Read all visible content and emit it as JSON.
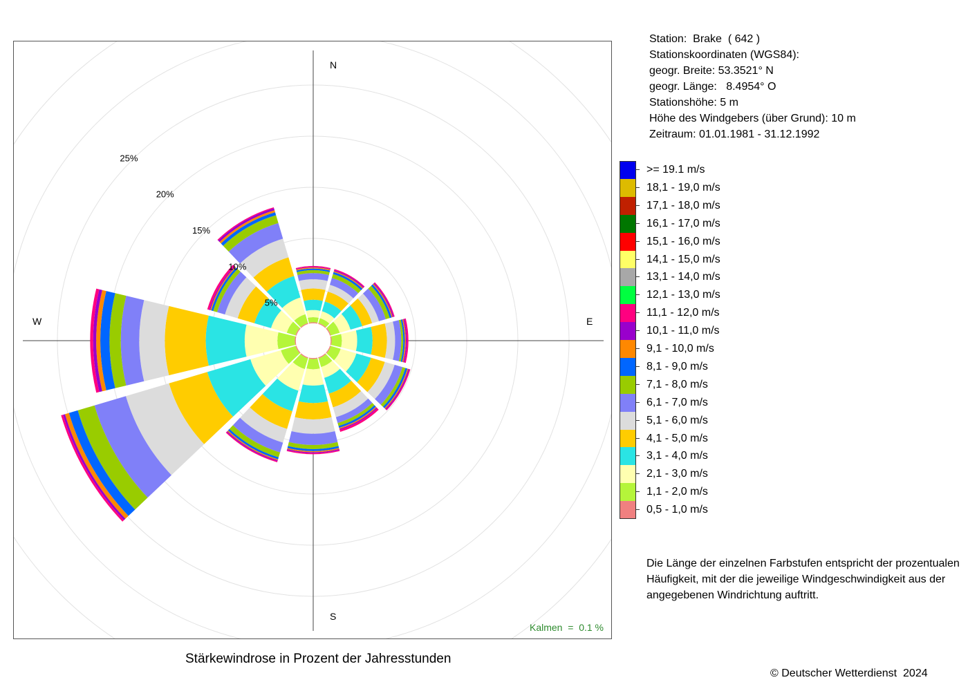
{
  "chart_data": {
    "type": "polar-bar",
    "title": "Stärkewindrose in Prozent der Jahresstunden",
    "compass": {
      "north": "N",
      "east": "E",
      "south": "S",
      "west": "W"
    },
    "ring_labels": [
      "5%",
      "10%",
      "15%",
      "20%",
      "25%"
    ],
    "ring_values": [
      5,
      10,
      15,
      20,
      25
    ],
    "calm_inner_percent": 1.7,
    "calms_label": "Kalmen  =  0.1 %",
    "directions": [
      "N",
      "NNE",
      "ENE",
      "E",
      "ESE",
      "SSE",
      "S",
      "SSW",
      "WSW",
      "W",
      "WNW",
      "NNW"
    ],
    "direction_angles_deg": [
      0,
      30,
      60,
      90,
      120,
      150,
      180,
      210,
      240,
      270,
      300,
      330
    ],
    "classes": [
      {
        "label": "0,5 - 1,0 m/s",
        "color": "#f08080"
      },
      {
        "label": "1,1 - 2,0 m/s",
        "color": "#b5f53a"
      },
      {
        "label": "2,1 - 3,0 m/s",
        "color": "#ffffb0"
      },
      {
        "label": "3,1 - 4,0 m/s",
        "color": "#2ae4e4"
      },
      {
        "label": "4,1 - 5,0 m/s",
        "color": "#ffcc00"
      },
      {
        "label": "5,1 - 6,0 m/s",
        "color": "#dcdcdc"
      },
      {
        "label": "6,1 - 7,0 m/s",
        "color": "#8080f8"
      },
      {
        "label": "7,1 - 8,0 m/s",
        "color": "#99cc00"
      },
      {
        "label": "8,1 - 9,0 m/s",
        "color": "#0066ff"
      },
      {
        "label": "9,1 - 10,0 m/s",
        "color": "#ff8800"
      },
      {
        "label": "10,1 - 11,0 m/s",
        "color": "#9900cc"
      },
      {
        "label": "11,1 - 12,0 m/s",
        "color": "#ff0080"
      },
      {
        "label": "12,1 - 13,0 m/s",
        "color": "#00ff40"
      },
      {
        "label": "13,1 - 14,0 m/s",
        "color": "#a8a8a8"
      },
      {
        "label": "14,1 - 15,0 m/s",
        "color": "#ffff66"
      },
      {
        "label": "15,1 - 16,0 m/s",
        "color": "#ff0000"
      },
      {
        "label": "16,1 - 17,0 m/s",
        "color": "#007700"
      },
      {
        "label": "17,1 - 18,0 m/s",
        "color": "#c02000"
      },
      {
        "label": "18,1 - 19,0 m/s",
        "color": "#ddbb00"
      },
      {
        "label": ">= 19.1 m/s",
        "color": "#0000ee"
      }
    ],
    "cumulative_percent": [
      [
        1.8,
        2.3,
        3.0,
        4.0,
        5.1,
        6.0,
        6.6,
        6.9,
        7.05,
        7.15,
        7.2,
        7.3
      ],
      [
        1.8,
        2.3,
        3.0,
        4.0,
        5.0,
        5.7,
        6.4,
        6.8,
        7.0,
        7.1,
        7.2,
        7.3
      ],
      [
        1.8,
        2.7,
        3.8,
        5.0,
        6.0,
        6.7,
        7.4,
        7.8,
        8.0,
        8.1,
        8.2,
        8.3
      ],
      [
        1.8,
        2.8,
        4.3,
        5.8,
        7.2,
        8.0,
        8.6,
        8.8,
        8.95,
        9.05,
        9.15,
        9.3
      ],
      [
        1.8,
        2.8,
        4.4,
        5.9,
        7.3,
        8.3,
        9.1,
        9.4,
        9.6,
        9.7,
        9.8,
        9.9
      ],
      [
        1.8,
        2.7,
        3.8,
        5.4,
        6.8,
        7.8,
        8.4,
        8.7,
        8.9,
        9.0,
        9.1,
        9.3
      ],
      [
        1.8,
        2.8,
        4.4,
        6.1,
        7.7,
        9.1,
        10.2,
        10.6,
        10.8,
        10.9,
        11.0,
        11.1
      ],
      [
        1.8,
        2.9,
        5.1,
        7.2,
        9.0,
        10.4,
        11.4,
        11.9,
        12.1,
        12.2,
        12.3,
        12.4
      ],
      [
        1.8,
        3.3,
        6.4,
        10.8,
        14.7,
        19.1,
        22.3,
        24.0,
        24.9,
        25.3,
        25.5,
        25.7
      ],
      [
        1.8,
        3.5,
        6.7,
        10.5,
        14.5,
        17.0,
        18.8,
        19.9,
        20.8,
        21.2,
        21.5,
        21.8
      ],
      [
        1.8,
        2.7,
        4.3,
        6.0,
        7.7,
        9.0,
        9.8,
        10.2,
        10.4,
        10.5,
        10.6,
        10.8
      ],
      [
        1.8,
        2.7,
        4.4,
        6.6,
        8.5,
        10.4,
        12.0,
        12.8,
        13.1,
        13.3,
        13.5,
        13.6
      ]
    ]
  },
  "station": {
    "line1": "Station:  Brake  ( 642 )",
    "line2": "Stationskoordinaten (WGS84):",
    "line3": "geogr. Breite: 53.3521° N",
    "line4": "geogr. Länge:   8.4954° O",
    "line5": "Stationshöhe: 5 m",
    "line6": "Höhe des Windgebers (über Grund): 10 m",
    "line7": "Zeitraum: 01.01.1981 - 31.12.1992"
  },
  "explanation": "Die Länge der einzelnen Farbstufen entspricht der prozentualen Häufigkeit, mit der die jeweilige Windgeschwindigkeit aus der angegebenen Windrichtung auftritt.",
  "copyright": "© Deutscher Wetterdienst  2024"
}
